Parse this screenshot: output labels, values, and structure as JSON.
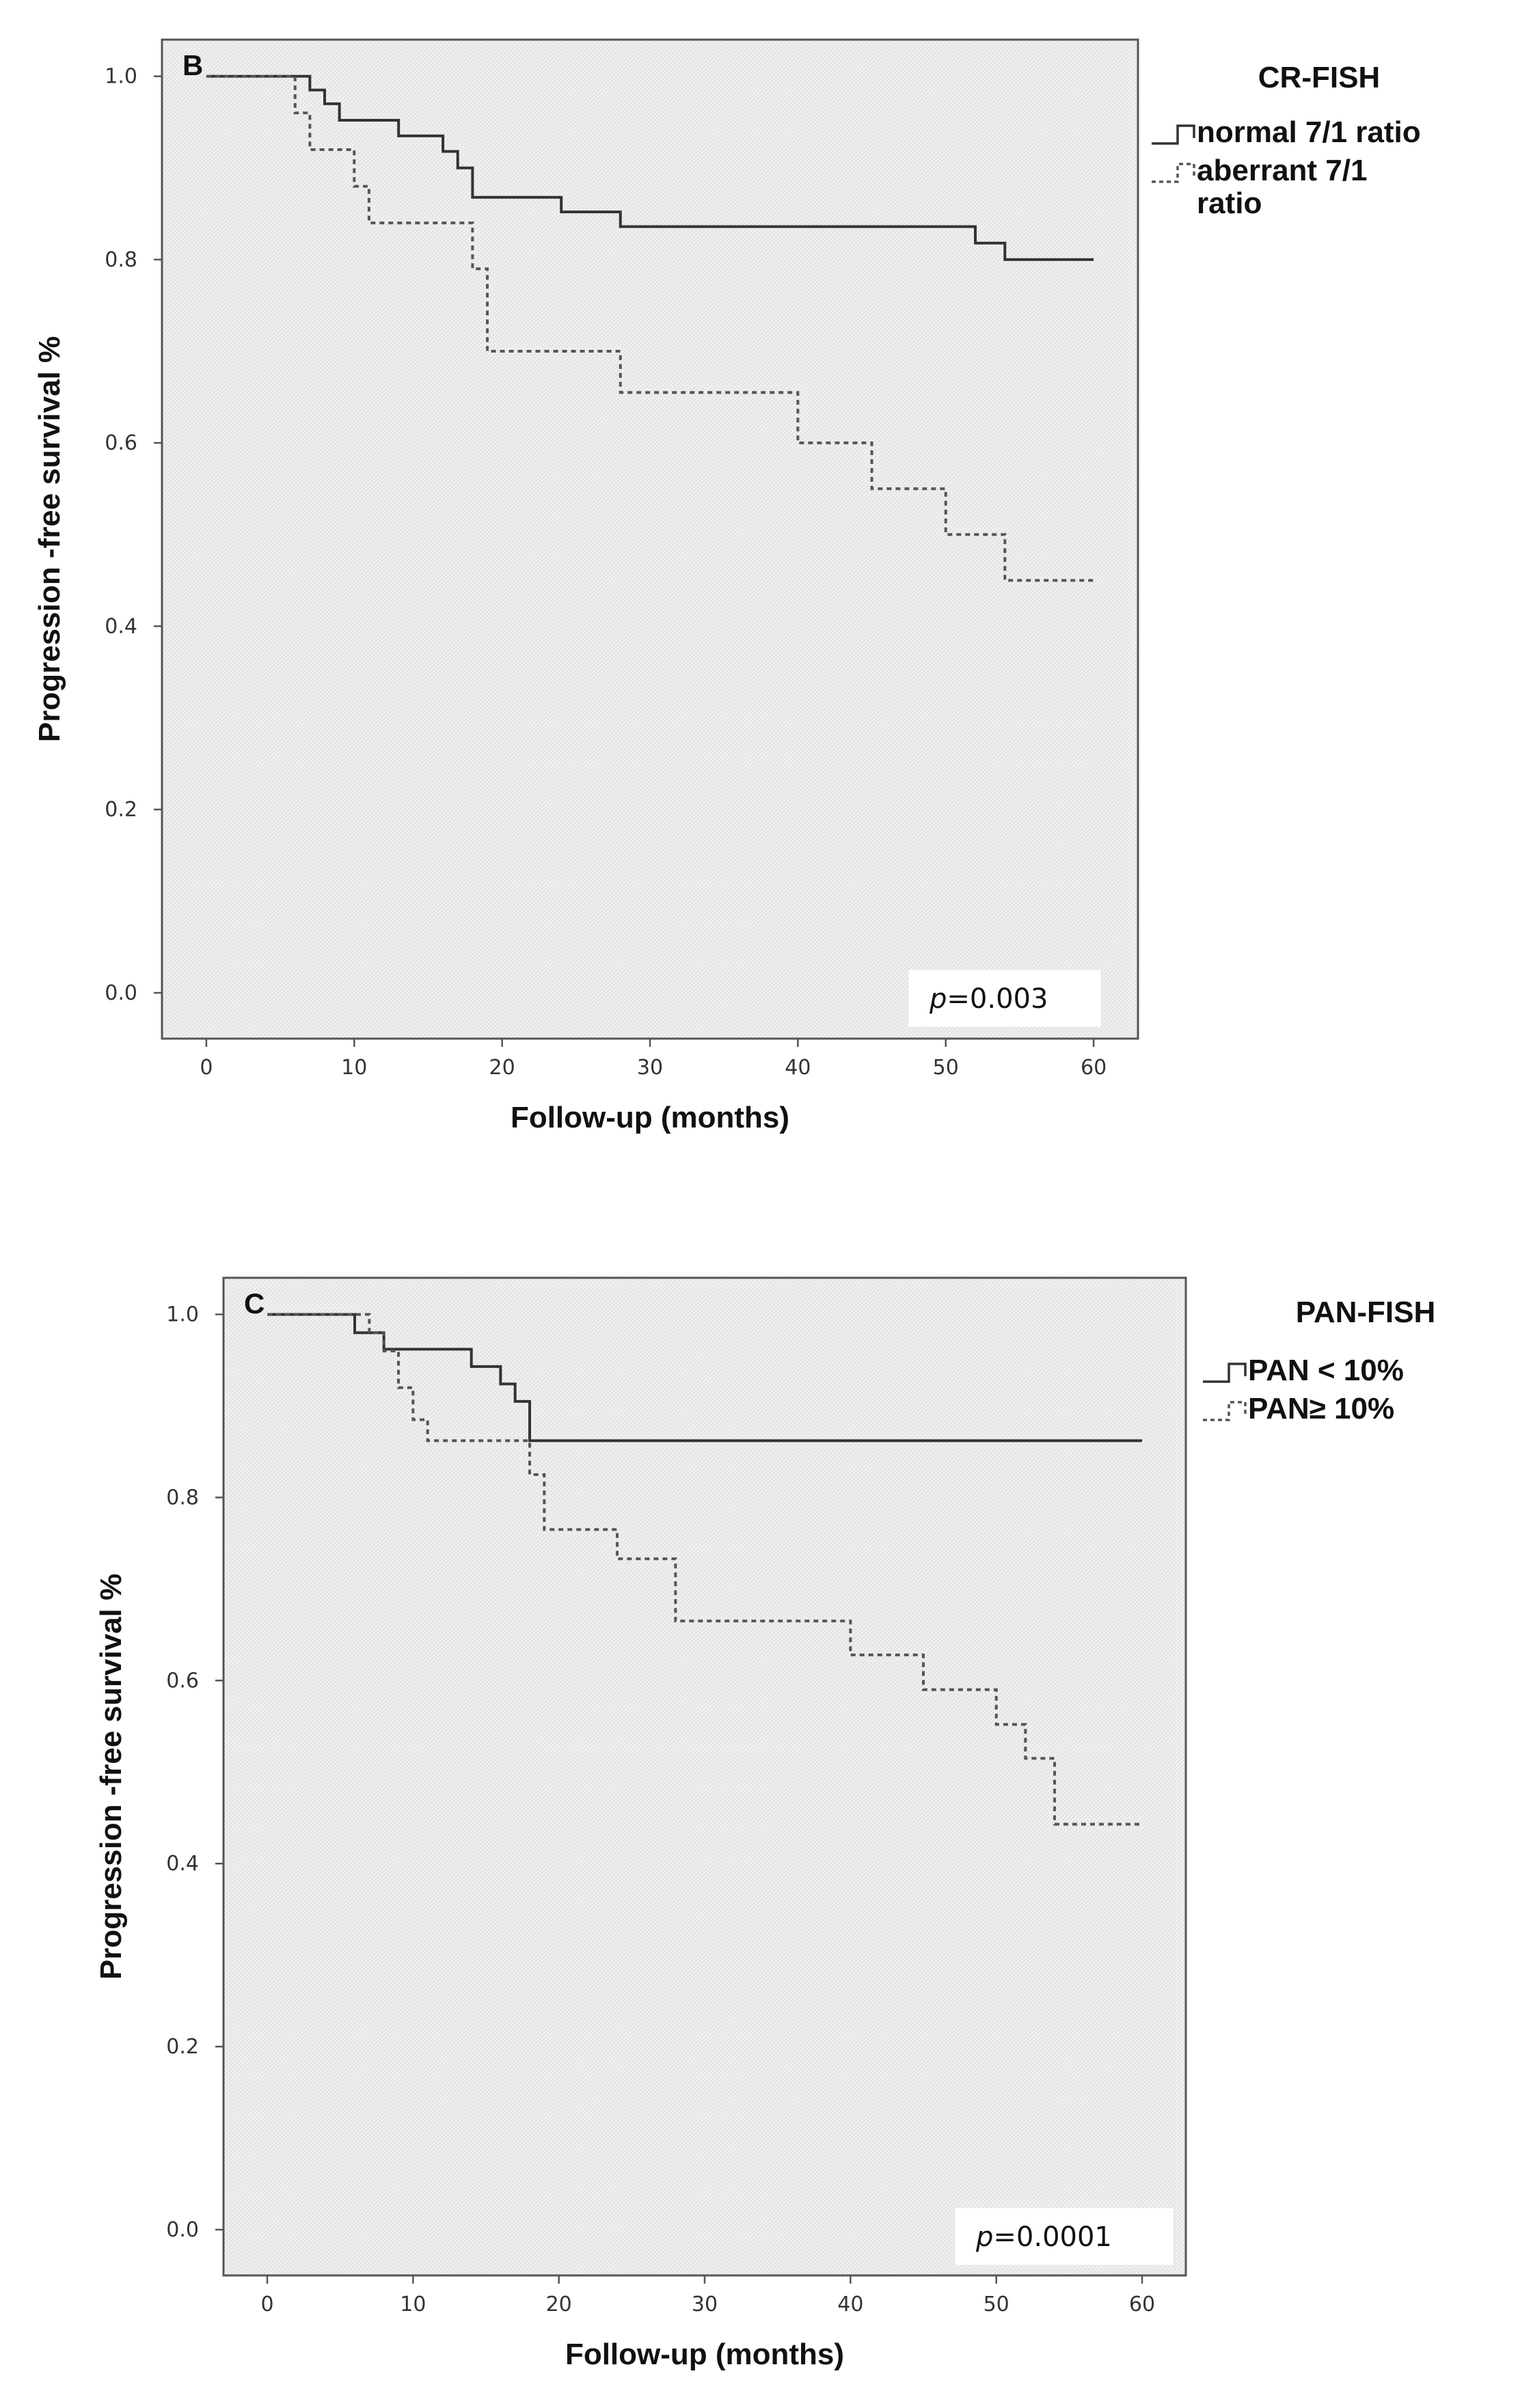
{
  "chart_data": [
    {
      "type": "line",
      "subtype": "kaplan-meier",
      "panel_label": "B",
      "legend_title": "CR-FISH",
      "legend_placement": "outside-top-right",
      "xlabel": "Follow-up (months)",
      "ylabel": "Progression -free survival %",
      "xlim": [
        -3,
        63
      ],
      "ylim": [
        -0.05,
        1.04
      ],
      "xticks": [
        "0",
        "10",
        "20",
        "30",
        "40",
        "50",
        "60"
      ],
      "yticks": [
        "0.0",
        "0.2",
        "0.4",
        "0.6",
        "0.8",
        "1.0"
      ],
      "annotation": {
        "prefix": "p",
        "text": "=0.003"
      },
      "series": [
        {
          "name": "normal 7/1 ratio",
          "legend_lines": [
            "normal 7/1 ratio"
          ],
          "style": "solid",
          "color": "#333333",
          "x": [
            0,
            7,
            8,
            9,
            13,
            16,
            17,
            18,
            24,
            28,
            52,
            54,
            60
          ],
          "y": [
            1.0,
            0.985,
            0.97,
            0.952,
            0.935,
            0.918,
            0.9,
            0.868,
            0.852,
            0.836,
            0.818,
            0.8,
            0.8
          ]
        },
        {
          "name": "aberrant 7/1 ratio",
          "legend_lines": [
            "aberrant 7/1",
            "ratio"
          ],
          "style": "dashed",
          "color": "#555555",
          "x": [
            0,
            6,
            7,
            8,
            10,
            11,
            18,
            19,
            28,
            40,
            45,
            50,
            54,
            60
          ],
          "y": [
            1.0,
            0.96,
            0.92,
            0.92,
            0.88,
            0.84,
            0.79,
            0.7,
            0.655,
            0.6,
            0.55,
            0.5,
            0.45,
            0.45
          ]
        }
      ]
    },
    {
      "type": "line",
      "subtype": "kaplan-meier",
      "panel_label": "C",
      "legend_title": "PAN-FISH",
      "legend_placement": "outside-top-right",
      "xlabel": "Follow-up (months)",
      "ylabel": "Progression -free survival %",
      "xlim": [
        -3,
        63
      ],
      "ylim": [
        -0.05,
        1.04
      ],
      "xticks": [
        "0",
        "10",
        "20",
        "30",
        "40",
        "50",
        "60"
      ],
      "yticks": [
        "0.0",
        "0.2",
        "0.4",
        "0.6",
        "0.8",
        "1.0"
      ],
      "annotation": {
        "prefix": "p",
        "text": "=0.0001"
      },
      "series": [
        {
          "name": "PAN < 10%",
          "legend_lines": [
            "PAN < 10%"
          ],
          "style": "solid",
          "color": "#333333",
          "x": [
            0,
            6,
            7,
            8,
            10,
            14,
            16,
            17,
            18,
            60
          ],
          "y": [
            1.0,
            0.98,
            0.98,
            0.962,
            0.962,
            0.943,
            0.924,
            0.905,
            0.862,
            0.862
          ]
        },
        {
          "name": "PAN ≥ 10%",
          "legend_lines": [
            "PAN≥ 10%"
          ],
          "style": "dashed",
          "color": "#555555",
          "x": [
            0,
            7,
            8,
            9,
            10,
            11,
            18,
            19,
            24,
            28,
            40,
            45,
            50,
            52,
            54,
            60
          ],
          "y": [
            1.0,
            0.98,
            0.96,
            0.92,
            0.885,
            0.862,
            0.825,
            0.765,
            0.733,
            0.665,
            0.628,
            0.59,
            0.552,
            0.515,
            0.443,
            0.443
          ]
        }
      ]
    }
  ]
}
